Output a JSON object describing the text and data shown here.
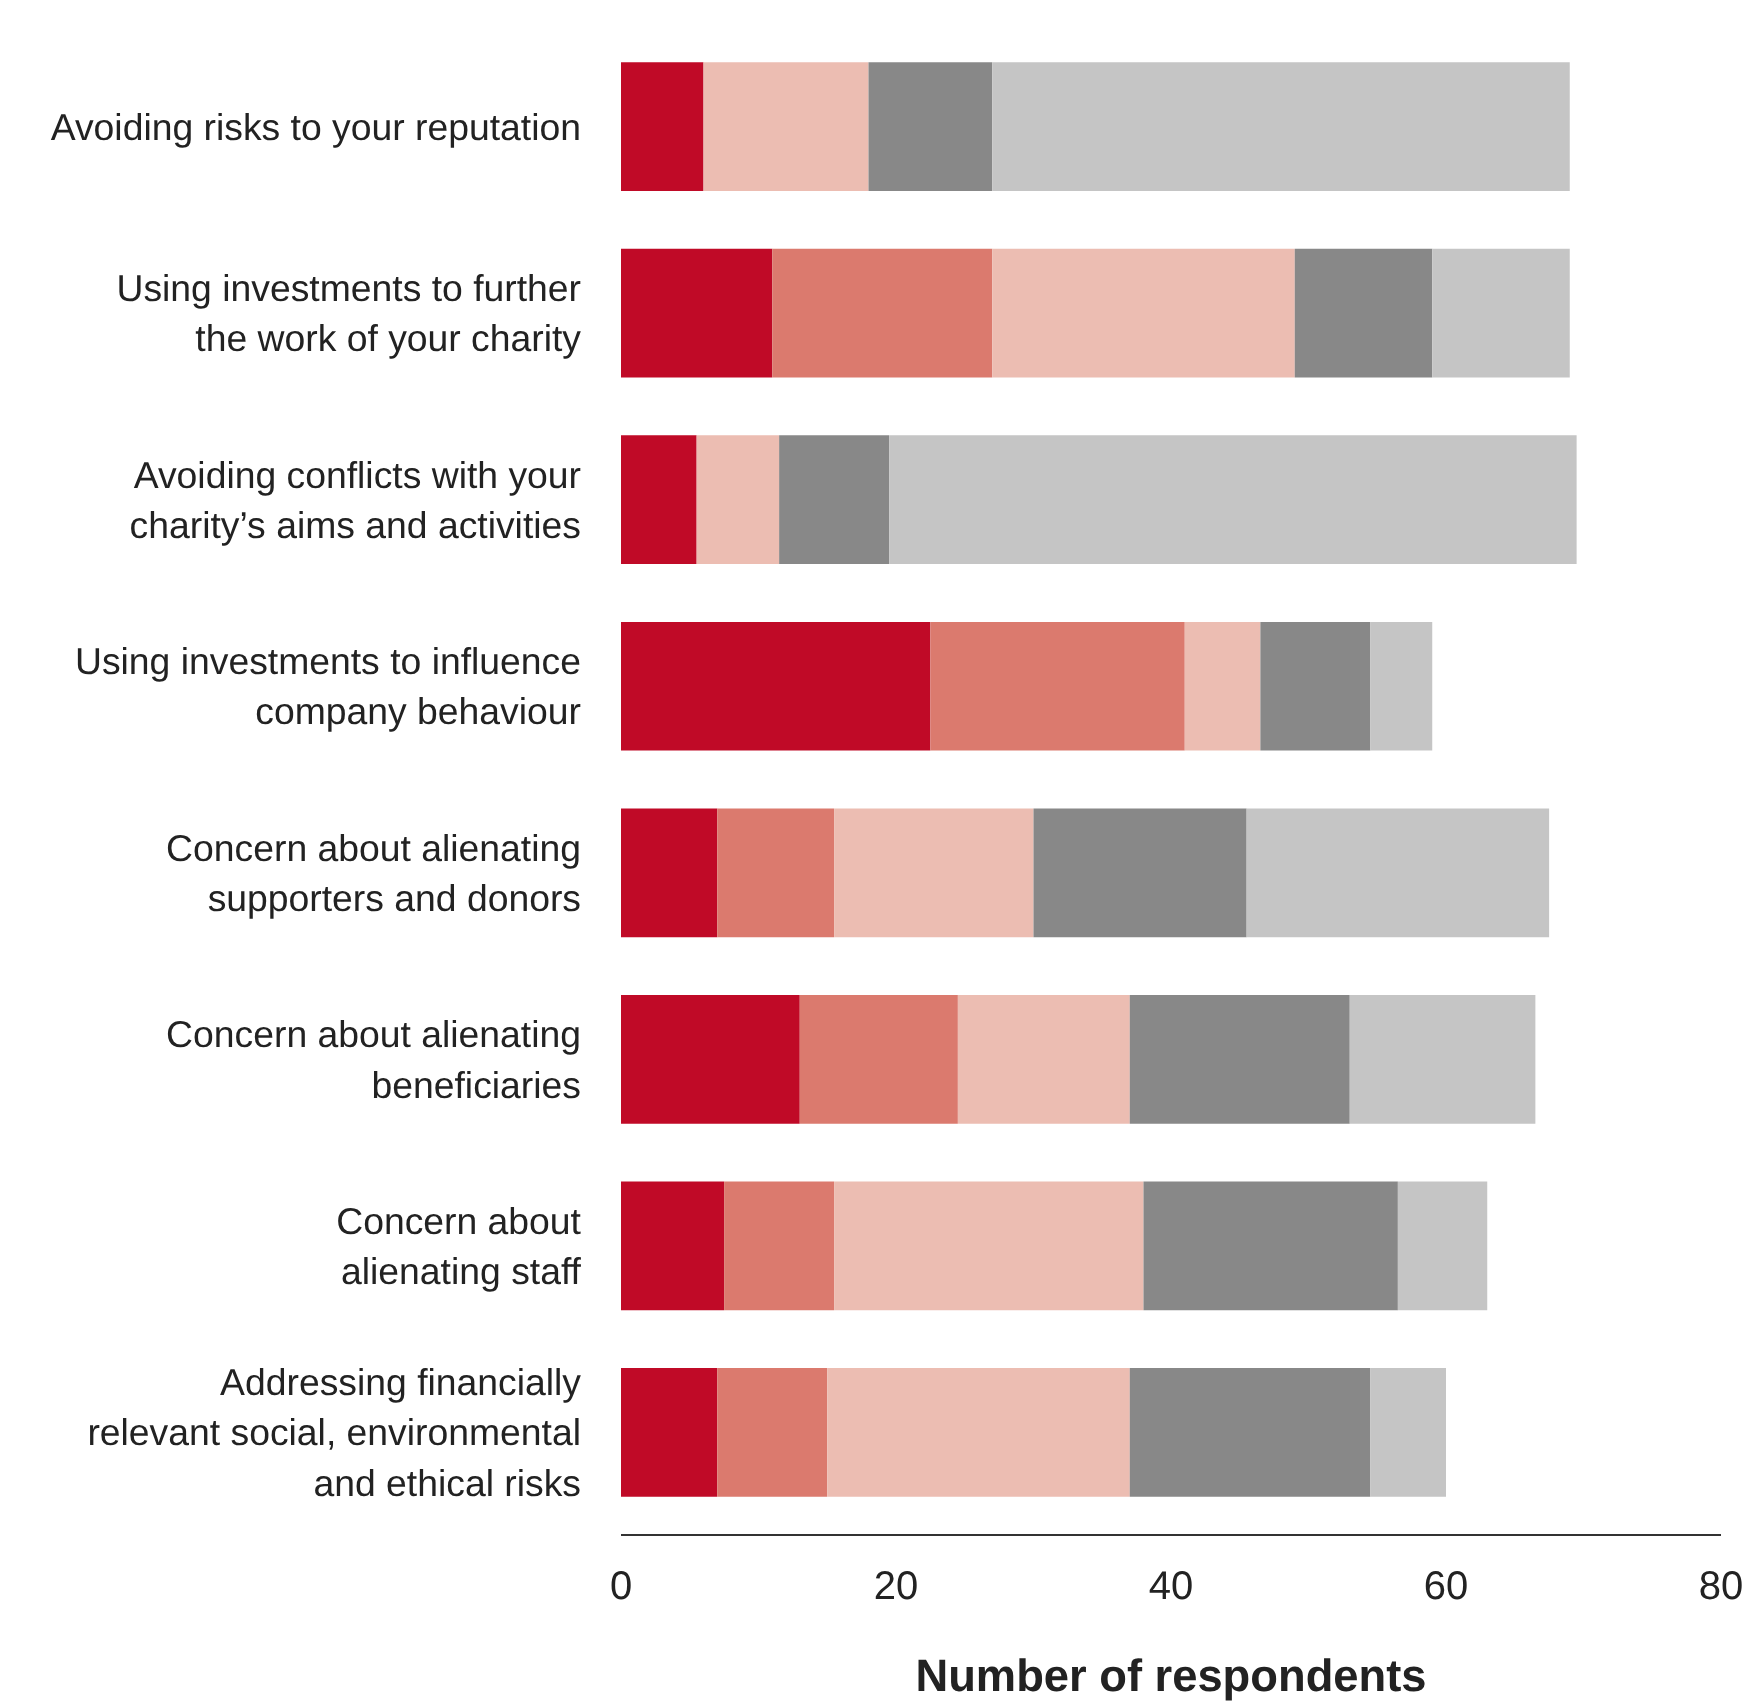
{
  "chart_data": {
    "type": "bar",
    "orientation": "horizontal",
    "stacked": true,
    "xlabel": "Number of respondents",
    "categories": [
      "Avoiding risks to your reputation",
      "Using investments to further\nthe work of your charity",
      "Avoiding conflicts with your\ncharity’s aims and activities",
      "Using investments to influence\ncompany behaviour",
      "Concern about alienating\nsupporters and donors",
      "Concern about alienating\nbeneficiaries",
      "Concern about\nalienating staff",
      "Addressing financially\nrelevant social, environmental\nand ethical risks"
    ],
    "series": [
      {
        "color": "#c00a27",
        "values": [
          6,
          11,
          5.5,
          22.5,
          7,
          13,
          7.5,
          7
        ]
      },
      {
        "color": "#db7a6e",
        "values": [
          0,
          16,
          0,
          18.5,
          8.5,
          11.5,
          8,
          8
        ]
      },
      {
        "color": "#ecbdb2",
        "values": [
          12,
          22,
          6,
          5.5,
          14.5,
          12.5,
          22.5,
          22
        ]
      },
      {
        "color": "#888888",
        "values": [
          9,
          10,
          8,
          8,
          15.5,
          16,
          18.5,
          17.5
        ]
      },
      {
        "color": "#c5c5c5",
        "values": [
          42,
          10,
          50,
          4.5,
          22,
          13.5,
          6.5,
          5.5
        ]
      }
    ],
    "xlim": [
      0,
      80
    ],
    "xticks": [
      0,
      20,
      40,
      60,
      80
    ],
    "grid": false
  }
}
